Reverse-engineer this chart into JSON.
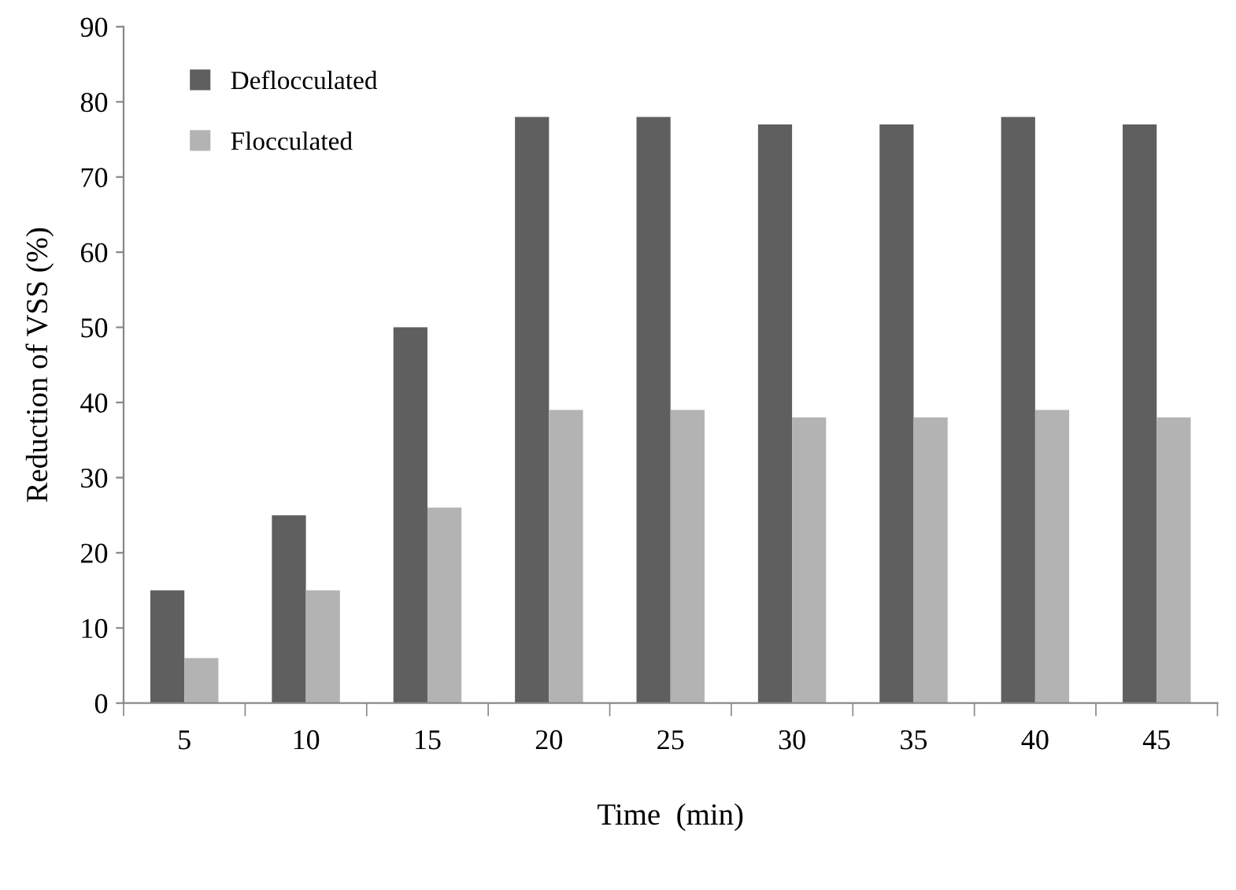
{
  "chart_data": {
    "type": "bar",
    "xlabel": "Time  (min)",
    "ylabel": "Reduction of VSS (%)",
    "categories": [
      "5",
      "10",
      "15",
      "20",
      "25",
      "30",
      "35",
      "40",
      "45"
    ],
    "series": [
      {
        "name": "Deflocculated",
        "color": "#5f5f5f",
        "values": [
          15,
          25,
          50,
          78,
          78,
          77,
          77,
          78,
          77
        ]
      },
      {
        "name": "Flocculated",
        "color": "#b3b3b3",
        "values": [
          6,
          15,
          26,
          39,
          39,
          38,
          38,
          39,
          38
        ]
      }
    ],
    "ylim": [
      0,
      90
    ],
    "yticks": [
      0,
      10,
      20,
      30,
      40,
      50,
      60,
      70,
      80,
      90
    ],
    "grid": false,
    "legend": "top left"
  }
}
